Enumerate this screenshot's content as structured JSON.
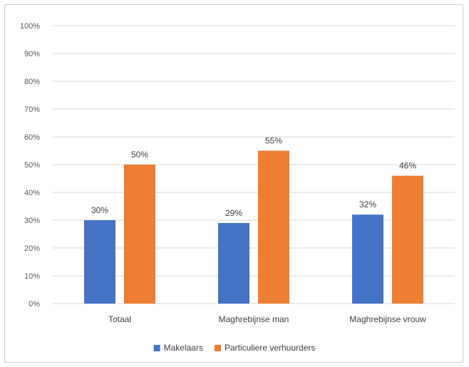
{
  "chart_data": {
    "type": "bar",
    "title": "",
    "xlabel": "",
    "ylabel": "",
    "categories": [
      "Totaal",
      "Maghrebijnse man",
      "Maghrebijnse vrouw"
    ],
    "series": [
      {
        "name": "Makelaars",
        "values": [
          30,
          29,
          32
        ],
        "labels": [
          "30%",
          "29%",
          "32%"
        ],
        "color": "#4472C4"
      },
      {
        "name": "Particuliere verhuurders",
        "values": [
          50,
          55,
          46
        ],
        "labels": [
          "50%",
          "55%",
          "46%"
        ],
        "color": "#ED7D31"
      }
    ],
    "ylim": [
      0,
      100
    ],
    "yticks": [
      0,
      10,
      20,
      30,
      40,
      50,
      60,
      70,
      80,
      90,
      100
    ],
    "ytick_labels": [
      "0%",
      "10%",
      "20%",
      "30%",
      "40%",
      "50%",
      "60%",
      "70%",
      "80%",
      "90%",
      "100%"
    ],
    "grid": true,
    "gridline_color": "#d9d9d9",
    "legend_position": "bottom"
  }
}
